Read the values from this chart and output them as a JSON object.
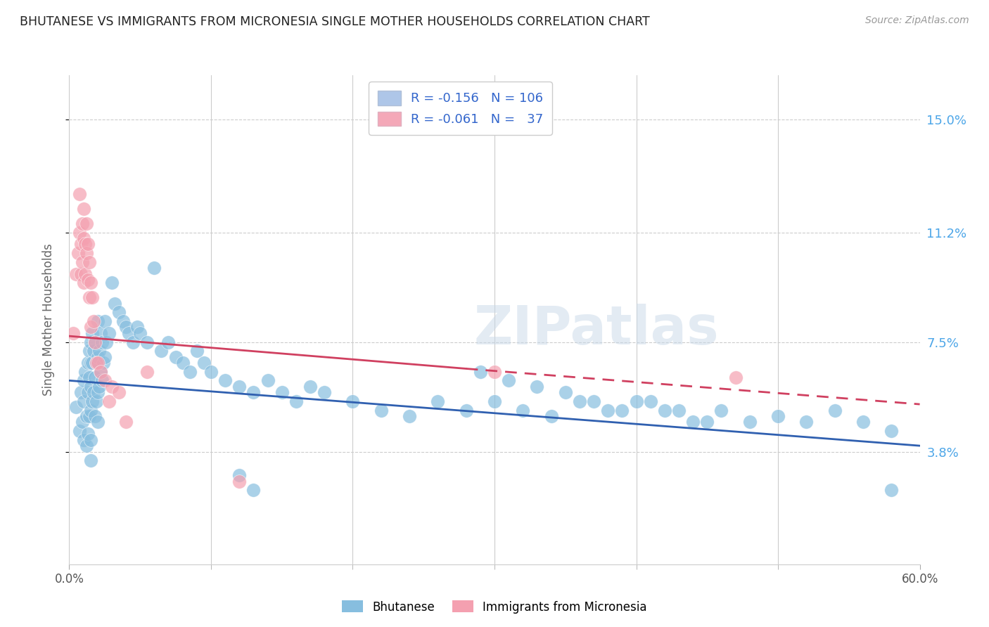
{
  "title": "BHUTANESE VS IMMIGRANTS FROM MICRONESIA SINGLE MOTHER HOUSEHOLDS CORRELATION CHART",
  "source": "Source: ZipAtlas.com",
  "ylabel": "Single Mother Households",
  "yticks": [
    "3.8%",
    "7.5%",
    "11.2%",
    "15.0%"
  ],
  "ytick_vals": [
    0.038,
    0.075,
    0.112,
    0.15
  ],
  "xmin": 0.0,
  "xmax": 0.6,
  "ymin": 0.0,
  "ymax": 0.165,
  "legend_entry1": {
    "color_face": "#aec6e8",
    "color_line": "#4472c4",
    "R": "-0.156",
    "N": "106"
  },
  "legend_entry2": {
    "color_face": "#f4a8b8",
    "color_line": "#e8567a",
    "R": "-0.061",
    "N": "  37"
  },
  "watermark": "ZIPatlas",
  "blue_scatter_color": "#87BEDF",
  "pink_scatter_color": "#F4A0B0",
  "blue_line_color": "#3060B0",
  "pink_line_color": "#D04060",
  "blue_scatter": {
    "x": [
      0.005,
      0.007,
      0.008,
      0.009,
      0.01,
      0.01,
      0.01,
      0.011,
      0.012,
      0.012,
      0.013,
      0.013,
      0.013,
      0.014,
      0.014,
      0.014,
      0.015,
      0.015,
      0.015,
      0.015,
      0.015,
      0.015,
      0.016,
      0.016,
      0.016,
      0.017,
      0.017,
      0.018,
      0.018,
      0.018,
      0.019,
      0.019,
      0.02,
      0.02,
      0.02,
      0.02,
      0.021,
      0.021,
      0.022,
      0.022,
      0.023,
      0.023,
      0.024,
      0.025,
      0.025,
      0.026,
      0.028,
      0.03,
      0.032,
      0.035,
      0.038,
      0.04,
      0.042,
      0.045,
      0.048,
      0.05,
      0.055,
      0.06,
      0.065,
      0.07,
      0.075,
      0.08,
      0.085,
      0.09,
      0.095,
      0.1,
      0.11,
      0.12,
      0.13,
      0.14,
      0.15,
      0.16,
      0.17,
      0.18,
      0.2,
      0.22,
      0.24,
      0.26,
      0.28,
      0.3,
      0.32,
      0.34,
      0.36,
      0.38,
      0.4,
      0.42,
      0.44,
      0.46,
      0.48,
      0.5,
      0.52,
      0.54,
      0.56,
      0.58,
      0.58,
      0.29,
      0.31,
      0.33,
      0.35,
      0.37,
      0.39,
      0.41,
      0.43,
      0.45,
      0.12,
      0.13
    ],
    "y": [
      0.053,
      0.045,
      0.058,
      0.048,
      0.062,
      0.055,
      0.042,
      0.065,
      0.05,
      0.04,
      0.068,
      0.058,
      0.044,
      0.072,
      0.063,
      0.05,
      0.075,
      0.068,
      0.06,
      0.052,
      0.042,
      0.035,
      0.078,
      0.068,
      0.055,
      0.072,
      0.058,
      0.075,
      0.063,
      0.05,
      0.068,
      0.055,
      0.082,
      0.07,
      0.058,
      0.048,
      0.072,
      0.06,
      0.078,
      0.065,
      0.075,
      0.062,
      0.068,
      0.082,
      0.07,
      0.075,
      0.078,
      0.095,
      0.088,
      0.085,
      0.082,
      0.08,
      0.078,
      0.075,
      0.08,
      0.078,
      0.075,
      0.1,
      0.072,
      0.075,
      0.07,
      0.068,
      0.065,
      0.072,
      0.068,
      0.065,
      0.062,
      0.06,
      0.058,
      0.062,
      0.058,
      0.055,
      0.06,
      0.058,
      0.055,
      0.052,
      0.05,
      0.055,
      0.052,
      0.055,
      0.052,
      0.05,
      0.055,
      0.052,
      0.055,
      0.052,
      0.048,
      0.052,
      0.048,
      0.05,
      0.048,
      0.052,
      0.048,
      0.045,
      0.025,
      0.065,
      0.062,
      0.06,
      0.058,
      0.055,
      0.052,
      0.055,
      0.052,
      0.048,
      0.03,
      0.025
    ]
  },
  "pink_scatter": {
    "x": [
      0.003,
      0.005,
      0.006,
      0.007,
      0.007,
      0.008,
      0.008,
      0.009,
      0.009,
      0.01,
      0.01,
      0.01,
      0.011,
      0.011,
      0.012,
      0.012,
      0.013,
      0.013,
      0.014,
      0.014,
      0.015,
      0.015,
      0.016,
      0.017,
      0.018,
      0.019,
      0.02,
      0.022,
      0.025,
      0.028,
      0.03,
      0.035,
      0.04,
      0.055,
      0.12,
      0.3,
      0.47
    ],
    "y": [
      0.078,
      0.098,
      0.105,
      0.112,
      0.125,
      0.108,
      0.098,
      0.115,
      0.102,
      0.12,
      0.11,
      0.095,
      0.108,
      0.098,
      0.115,
      0.105,
      0.108,
      0.096,
      0.102,
      0.09,
      0.095,
      0.08,
      0.09,
      0.082,
      0.075,
      0.068,
      0.068,
      0.065,
      0.062,
      0.055,
      0.06,
      0.058,
      0.048,
      0.065,
      0.028,
      0.065,
      0.063
    ]
  },
  "blue_line": {
    "x0": 0.0,
    "x1": 0.6,
    "y0": 0.062,
    "y1": 0.04
  },
  "pink_line_solid": {
    "x0": 0.0,
    "x1": 0.28,
    "y0": 0.077,
    "y1": 0.066
  },
  "pink_line_dashed": {
    "x0": 0.28,
    "x1": 0.6,
    "y0": 0.066,
    "y1": 0.054
  },
  "legend_label1": "Bhutanese",
  "legend_label2": "Immigrants from Micronesia",
  "title_color": "#222222",
  "axis_label_color": "#666666",
  "right_axis_color": "#4da6e8",
  "grid_color": "#dddddd"
}
